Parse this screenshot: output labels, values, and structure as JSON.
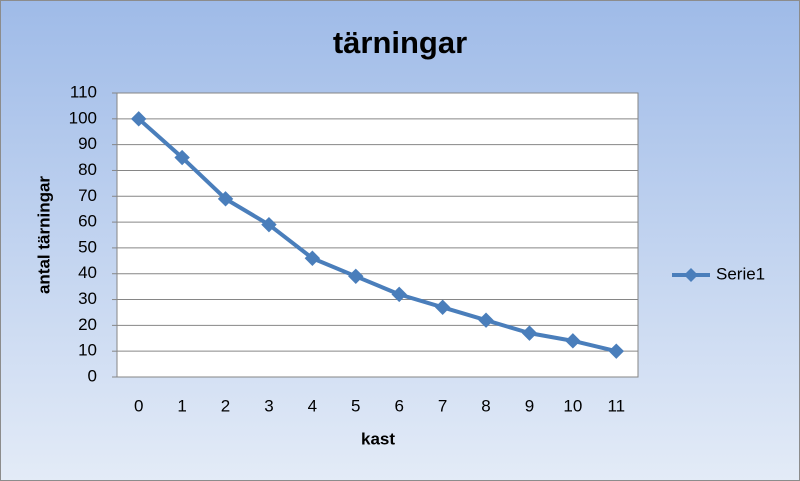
{
  "chart_data": {
    "type": "line",
    "title": "tärningar",
    "x_label": "kast",
    "y_label": "antal tärningar",
    "categories": [
      "0",
      "1",
      "2",
      "3",
      "4",
      "5",
      "6",
      "7",
      "8",
      "9",
      "10",
      "11"
    ],
    "series": [
      {
        "name": "Serie1",
        "color": "#4a7ebb",
        "values": [
          100,
          85,
          69,
          59,
          46,
          39,
          32,
          27,
          22,
          17,
          14,
          10
        ]
      }
    ],
    "ylim": [
      0,
      110
    ],
    "yticks": [
      0,
      10,
      20,
      30,
      40,
      50,
      60,
      70,
      80,
      90,
      100,
      110
    ],
    "grid": true,
    "legend": "right"
  }
}
